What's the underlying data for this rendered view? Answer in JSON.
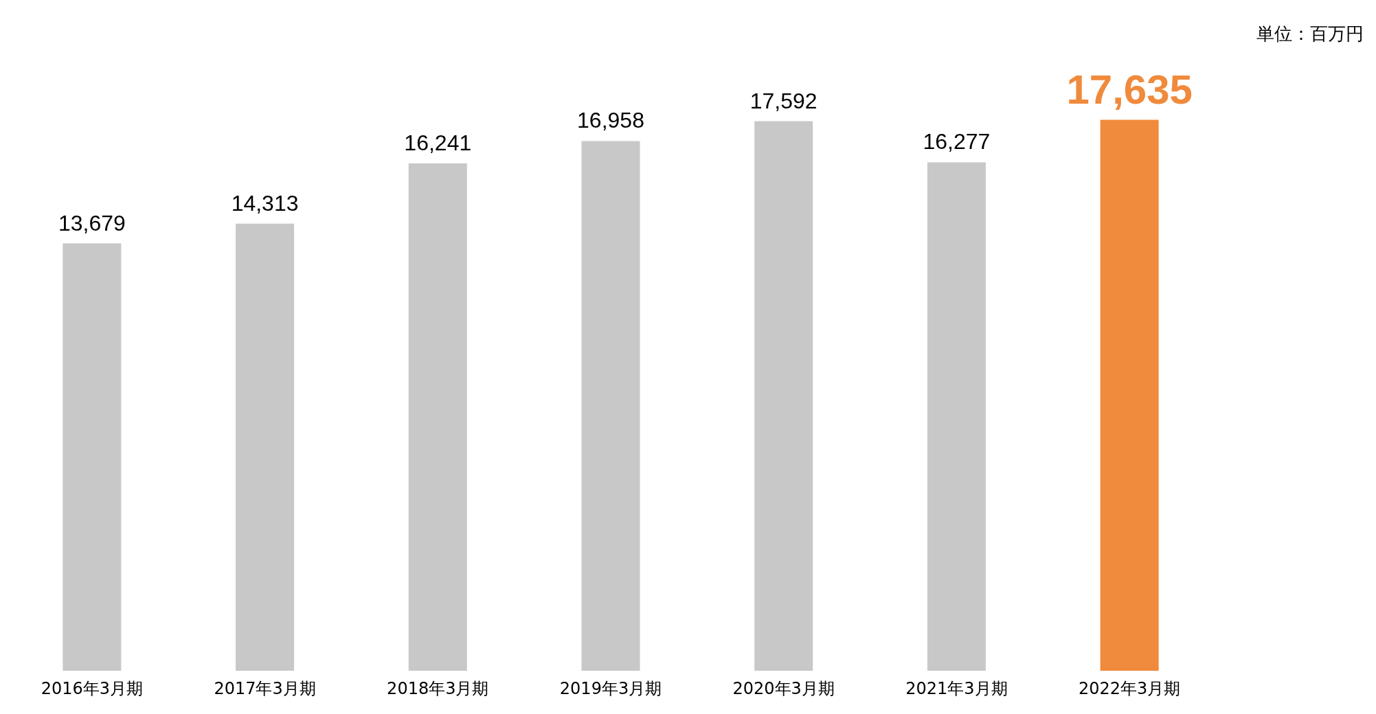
{
  "chart_data": {
    "type": "bar",
    "categories": [
      "2016年3月期",
      "2017年3月期",
      "2018年3月期",
      "2019年3月期",
      "2020年3月期",
      "2021年3月期",
      "2022年3月期"
    ],
    "values": [
      13679,
      14313,
      16241,
      16958,
      17592,
      16277,
      17635
    ],
    "colors": [
      "#c8c8c8",
      "#c8c8c8",
      "#c8c8c8",
      "#c8c8c8",
      "#c8c8c8",
      "#c8c8c8",
      "#f08a3c"
    ],
    "value_labels": [
      "13,679",
      "14,313",
      "16,241",
      "16,958",
      "17,592",
      "16,277",
      "17,635"
    ],
    "annotations": [
      "単位：百万円"
    ]
  }
}
